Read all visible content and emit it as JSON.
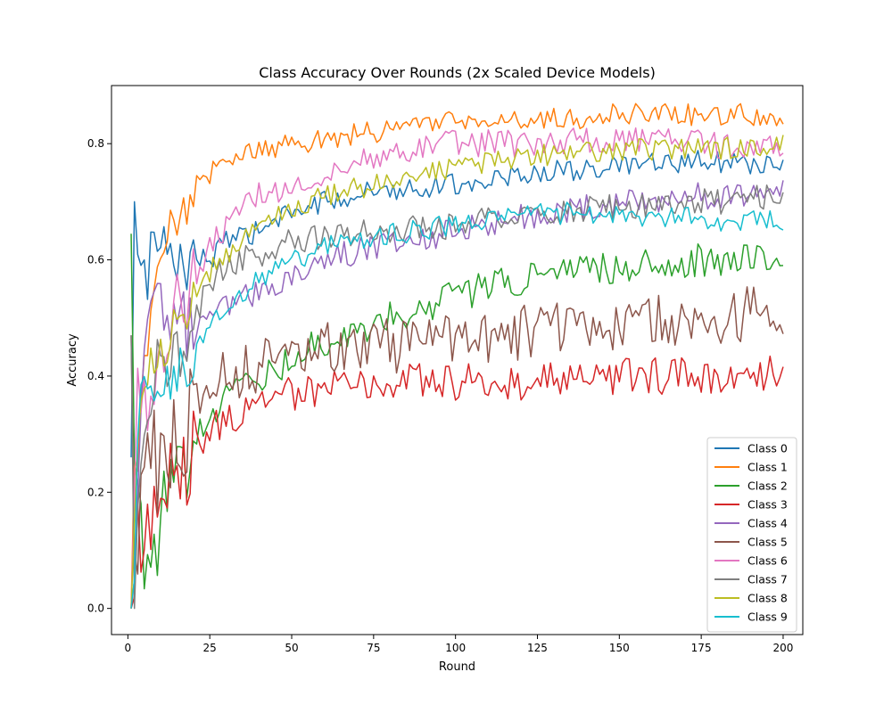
{
  "chart_data": {
    "type": "line",
    "title": "Class Accuracy Over Rounds (2x Scaled Device Models)",
    "xlabel": "Round",
    "ylabel": "Accuracy",
    "xlim": [
      -5,
      206
    ],
    "ylim": [
      -0.045,
      0.9
    ],
    "xticks": [
      0,
      25,
      50,
      75,
      100,
      125,
      150,
      175,
      200
    ],
    "yticks": [
      0.0,
      0.2,
      0.4,
      0.6,
      0.8
    ],
    "ytick_labels": [
      "0.0",
      "0.2",
      "0.4",
      "0.6",
      "0.8"
    ],
    "grid": false,
    "legend_position": "bottom-right",
    "x_range": [
      1,
      200
    ],
    "series": [
      {
        "name": "Class 0",
        "color": "#1f77b4",
        "noise": 0.012,
        "points": [
          [
            1,
            0.26
          ],
          [
            2,
            0.7
          ],
          [
            3,
            0.58
          ],
          [
            4,
            0.61
          ],
          [
            6,
            0.56
          ],
          [
            8,
            0.66
          ],
          [
            10,
            0.62
          ],
          [
            15,
            0.58
          ],
          [
            20,
            0.61
          ],
          [
            25,
            0.6
          ],
          [
            30,
            0.63
          ],
          [
            40,
            0.65
          ],
          [
            50,
            0.68
          ],
          [
            60,
            0.7
          ],
          [
            75,
            0.72
          ],
          [
            100,
            0.73
          ],
          [
            125,
            0.75
          ],
          [
            150,
            0.76
          ],
          [
            175,
            0.77
          ],
          [
            200,
            0.76
          ]
        ]
      },
      {
        "name": "Class 1",
        "color": "#ff7f0e",
        "noise": 0.012,
        "points": [
          [
            1,
            0.0
          ],
          [
            2,
            0.26
          ],
          [
            3,
            0.2
          ],
          [
            4,
            0.35
          ],
          [
            6,
            0.45
          ],
          [
            8,
            0.55
          ],
          [
            10,
            0.6
          ],
          [
            15,
            0.68
          ],
          [
            20,
            0.73
          ],
          [
            25,
            0.75
          ],
          [
            30,
            0.77
          ],
          [
            40,
            0.79
          ],
          [
            50,
            0.8
          ],
          [
            75,
            0.82
          ],
          [
            100,
            0.84
          ],
          [
            125,
            0.84
          ],
          [
            150,
            0.85
          ],
          [
            175,
            0.85
          ],
          [
            200,
            0.85
          ]
        ]
      },
      {
        "name": "Class 2",
        "color": "#2ca02c",
        "noise": 0.018,
        "points": [
          [
            1,
            0.645
          ],
          [
            2,
            0.25
          ],
          [
            3,
            0.15
          ],
          [
            5,
            0.1
          ],
          [
            7,
            0.09
          ],
          [
            10,
            0.15
          ],
          [
            15,
            0.22
          ],
          [
            20,
            0.29
          ],
          [
            25,
            0.32
          ],
          [
            30,
            0.36
          ],
          [
            40,
            0.4
          ],
          [
            50,
            0.43
          ],
          [
            60,
            0.46
          ],
          [
            75,
            0.49
          ],
          [
            100,
            0.54
          ],
          [
            125,
            0.57
          ],
          [
            150,
            0.59
          ],
          [
            175,
            0.6
          ],
          [
            200,
            0.6
          ]
        ]
      },
      {
        "name": "Class 3",
        "color": "#d62728",
        "noise": 0.02,
        "points": [
          [
            1,
            0.0
          ],
          [
            2,
            0.02
          ],
          [
            3,
            0.1
          ],
          [
            6,
            0.16
          ],
          [
            10,
            0.18
          ],
          [
            15,
            0.22
          ],
          [
            20,
            0.28
          ],
          [
            25,
            0.31
          ],
          [
            30,
            0.32
          ],
          [
            40,
            0.35
          ],
          [
            50,
            0.37
          ],
          [
            60,
            0.38
          ],
          [
            75,
            0.39
          ],
          [
            100,
            0.39
          ],
          [
            125,
            0.39
          ],
          [
            150,
            0.4
          ],
          [
            175,
            0.4
          ],
          [
            200,
            0.41
          ]
        ]
      },
      {
        "name": "Class 4",
        "color": "#9467bd",
        "noise": 0.015,
        "points": [
          [
            1,
            0.0
          ],
          [
            2,
            0.05
          ],
          [
            3,
            0.25
          ],
          [
            5,
            0.45
          ],
          [
            8,
            0.5
          ],
          [
            10,
            0.55
          ],
          [
            15,
            0.5
          ],
          [
            20,
            0.48
          ],
          [
            25,
            0.5
          ],
          [
            30,
            0.52
          ],
          [
            40,
            0.55
          ],
          [
            50,
            0.57
          ],
          [
            60,
            0.6
          ],
          [
            75,
            0.62
          ],
          [
            100,
            0.65
          ],
          [
            125,
            0.68
          ],
          [
            150,
            0.7
          ],
          [
            175,
            0.71
          ],
          [
            200,
            0.72
          ]
        ]
      },
      {
        "name": "Class 5",
        "color": "#8c564b",
        "noise": 0.03,
        "points": [
          [
            1,
            0.47
          ],
          [
            2,
            0.1
          ],
          [
            3,
            0.15
          ],
          [
            5,
            0.2
          ],
          [
            8,
            0.22
          ],
          [
            10,
            0.28
          ],
          [
            15,
            0.33
          ],
          [
            20,
            0.36
          ],
          [
            25,
            0.38
          ],
          [
            30,
            0.4
          ],
          [
            40,
            0.42
          ],
          [
            50,
            0.44
          ],
          [
            75,
            0.45
          ],
          [
            100,
            0.46
          ],
          [
            125,
            0.48
          ],
          [
            150,
            0.49
          ],
          [
            175,
            0.5
          ],
          [
            200,
            0.51
          ]
        ]
      },
      {
        "name": "Class 6",
        "color": "#e377c2",
        "noise": 0.015,
        "points": [
          [
            1,
            0.0
          ],
          [
            2,
            0.2
          ],
          [
            3,
            0.45
          ],
          [
            5,
            0.35
          ],
          [
            8,
            0.4
          ],
          [
            10,
            0.45
          ],
          [
            15,
            0.52
          ],
          [
            20,
            0.56
          ],
          [
            25,
            0.62
          ],
          [
            30,
            0.66
          ],
          [
            40,
            0.71
          ],
          [
            50,
            0.73
          ],
          [
            60,
            0.75
          ],
          [
            75,
            0.78
          ],
          [
            100,
            0.8
          ],
          [
            125,
            0.8
          ],
          [
            150,
            0.81
          ],
          [
            175,
            0.8
          ],
          [
            200,
            0.79
          ]
        ]
      },
      {
        "name": "Class 7",
        "color": "#7f7f7f",
        "noise": 0.015,
        "points": [
          [
            1,
            0.47
          ],
          [
            2,
            0.0
          ],
          [
            3,
            0.2
          ],
          [
            5,
            0.35
          ],
          [
            8,
            0.4
          ],
          [
            10,
            0.42
          ],
          [
            15,
            0.45
          ],
          [
            20,
            0.5
          ],
          [
            25,
            0.56
          ],
          [
            30,
            0.59
          ],
          [
            40,
            0.61
          ],
          [
            50,
            0.63
          ],
          [
            60,
            0.64
          ],
          [
            75,
            0.65
          ],
          [
            100,
            0.66
          ],
          [
            125,
            0.68
          ],
          [
            150,
            0.69
          ],
          [
            175,
            0.7
          ],
          [
            200,
            0.71
          ]
        ]
      },
      {
        "name": "Class 8",
        "color": "#bcbd22",
        "noise": 0.012,
        "points": [
          [
            1,
            0.0
          ],
          [
            2,
            0.15
          ],
          [
            3,
            0.3
          ],
          [
            5,
            0.4
          ],
          [
            8,
            0.42
          ],
          [
            10,
            0.45
          ],
          [
            15,
            0.5
          ],
          [
            20,
            0.54
          ],
          [
            25,
            0.58
          ],
          [
            30,
            0.61
          ],
          [
            40,
            0.65
          ],
          [
            50,
            0.69
          ],
          [
            60,
            0.71
          ],
          [
            75,
            0.73
          ],
          [
            100,
            0.76
          ],
          [
            125,
            0.78
          ],
          [
            150,
            0.79
          ],
          [
            175,
            0.79
          ],
          [
            200,
            0.8
          ]
        ]
      },
      {
        "name": "Class 9",
        "color": "#17becf",
        "noise": 0.012,
        "points": [
          [
            1,
            0.0
          ],
          [
            2,
            0.05
          ],
          [
            3,
            0.3
          ],
          [
            5,
            0.4
          ],
          [
            8,
            0.36
          ],
          [
            10,
            0.35
          ],
          [
            15,
            0.4
          ],
          [
            20,
            0.44
          ],
          [
            25,
            0.48
          ],
          [
            30,
            0.52
          ],
          [
            40,
            0.57
          ],
          [
            50,
            0.6
          ],
          [
            60,
            0.62
          ],
          [
            75,
            0.64
          ],
          [
            100,
            0.66
          ],
          [
            125,
            0.68
          ],
          [
            150,
            0.68
          ],
          [
            175,
            0.67
          ],
          [
            200,
            0.665
          ]
        ]
      }
    ]
  }
}
